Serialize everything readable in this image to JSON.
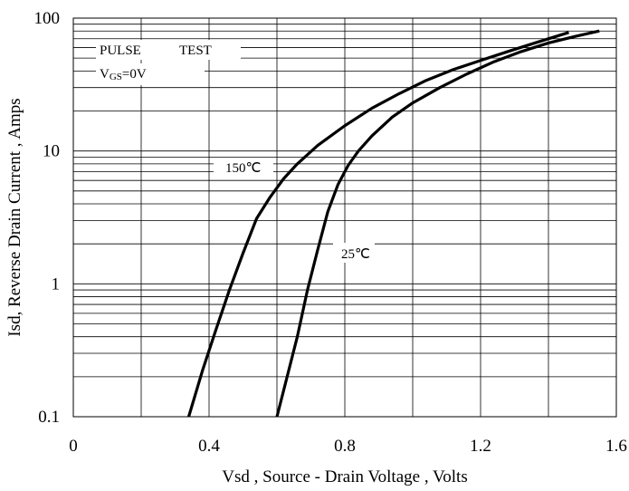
{
  "chart_data": {
    "type": "line",
    "xlabel": "Vsd , Source - Drain Voltage , Volts",
    "ylabel": "Isd, Reverse Drain Current , Amps",
    "xlim": [
      0,
      1.6
    ],
    "ylim": [
      0.1,
      100
    ],
    "yscale": "log",
    "grid": true,
    "x_ticks": [
      0,
      0.4,
      0.8,
      1.2,
      1.6
    ],
    "x_tick_labels": [
      "0",
      "0.4",
      "0.8",
      "1.2",
      "1.6"
    ],
    "y_ticks": [
      0.1,
      1,
      10,
      100
    ],
    "y_tick_labels": [
      "0.1",
      "1",
      "10",
      "100"
    ],
    "annotations": {
      "pulse": "PULSE",
      "test": "TEST",
      "vgs_main": "V",
      "vgs_sub": "GS",
      "vgs_value": "=0V"
    },
    "series": [
      {
        "name": "150℃",
        "x": [
          0.34,
          0.38,
          0.42,
          0.46,
          0.5,
          0.54,
          0.58,
          0.62,
          0.66,
          0.72,
          0.8,
          0.88,
          0.96,
          1.04,
          1.12,
          1.2,
          1.28,
          1.36,
          1.46
        ],
        "y": [
          0.1,
          0.22,
          0.45,
          0.9,
          1.7,
          3.1,
          4.5,
          6.2,
          8.0,
          11.0,
          15.5,
          21.0,
          27.0,
          34.0,
          41.0,
          48.0,
          56.0,
          65.0,
          78.0
        ]
      },
      {
        "name": "25℃",
        "x": [
          0.6,
          0.63,
          0.66,
          0.69,
          0.72,
          0.75,
          0.78,
          0.81,
          0.84,
          0.88,
          0.94,
          1.0,
          1.08,
          1.16,
          1.24,
          1.32,
          1.4,
          1.48,
          1.55
        ],
        "y": [
          0.1,
          0.2,
          0.4,
          0.9,
          1.8,
          3.5,
          5.6,
          7.8,
          10.0,
          13.0,
          18.0,
          23.0,
          30.0,
          38.0,
          47.0,
          56.0,
          65.0,
          73.0,
          80.0
        ]
      }
    ]
  }
}
